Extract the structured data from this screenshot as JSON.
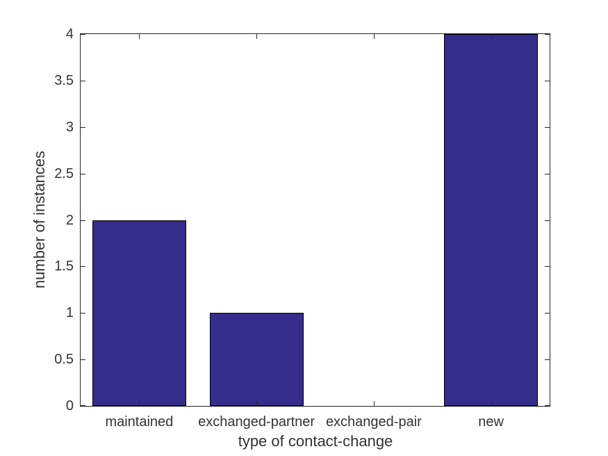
{
  "chart_data": {
    "type": "bar",
    "categories": [
      "maintained",
      "exchanged-partner",
      "exchanged-pair",
      "new"
    ],
    "values": [
      2,
      1,
      0,
      4
    ],
    "title": "",
    "xlabel": "type of contact-change",
    "ylabel": "number of instances",
    "ylim": [
      0,
      4
    ],
    "yticks": [
      0,
      0.5,
      1,
      1.5,
      2,
      2.5,
      3,
      3.5,
      4
    ],
    "ytick_labels": [
      "0",
      "0.5",
      "1",
      "1.5",
      "2",
      "2.5",
      "3",
      "3.5",
      "4"
    ],
    "grid": false,
    "legend_position": "none",
    "bar_width_fraction": 0.8,
    "colors": {
      "bar_fill": "#362C8C",
      "bar_edge": "#000000",
      "axis": "#262626",
      "text": "#333333",
      "background": "#ffffff"
    }
  }
}
